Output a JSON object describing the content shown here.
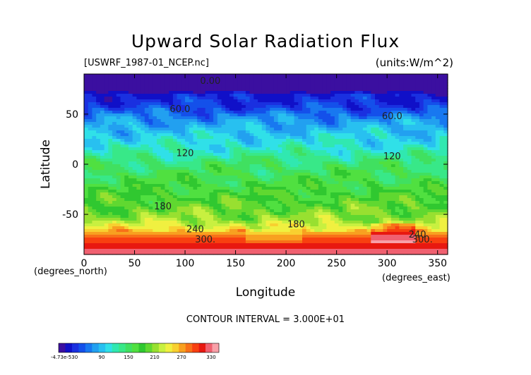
{
  "chart_data": {
    "type": "heatmap",
    "title": "Upward Solar Radiation Flux",
    "file_label": "[USWRF_1987-01_NCEP.nc]",
    "units_label": "(units:W/m^2)",
    "xlabel": "Longitude",
    "ylabel": "Latitude",
    "x_unit_label": "(degrees_east)",
    "y_unit_label": "(degrees_north)",
    "xlim": [
      0,
      360
    ],
    "ylim": [
      -90,
      90
    ],
    "x_ticks": [
      0,
      50,
      100,
      150,
      200,
      250,
      300,
      350
    ],
    "y_ticks": [
      -50,
      0,
      50
    ],
    "contour_interval": "CONTOUR INTERVAL = 3.000E+01",
    "contour_labels": [
      {
        "text": "0.00",
        "lon": 125,
        "lat": 80
      },
      {
        "text": "60.0",
        "lon": 95,
        "lat": 52
      },
      {
        "text": "60.0",
        "lon": 305,
        "lat": 45
      },
      {
        "text": "120",
        "lon": 100,
        "lat": 8
      },
      {
        "text": "120",
        "lon": 305,
        "lat": 5
      },
      {
        "text": "180",
        "lon": 78,
        "lat": -45
      },
      {
        "text": "180",
        "lon": 210,
        "lat": -63
      },
      {
        "text": "240",
        "lon": 110,
        "lat": -68
      },
      {
        "text": "240",
        "lon": 330,
        "lat": -73
      },
      {
        "text": "300.",
        "lon": 120,
        "lat": -78
      },
      {
        "text": "300.",
        "lon": 335,
        "lat": -78
      }
    ],
    "lat_profile": [
      {
        "lat": 90,
        "value": 0
      },
      {
        "lat": 72,
        "value": 0
      },
      {
        "lat": 70,
        "value": 20
      },
      {
        "lat": 58,
        "value": 35
      },
      {
        "lat": 45,
        "value": 70
      },
      {
        "lat": 30,
        "value": 95
      },
      {
        "lat": 15,
        "value": 115
      },
      {
        "lat": 0,
        "value": 145
      },
      {
        "lat": -20,
        "value": 165
      },
      {
        "lat": -40,
        "value": 190
      },
      {
        "lat": -55,
        "value": 210
      },
      {
        "lat": -62,
        "value": 235
      },
      {
        "lat": -66,
        "value": 255
      },
      {
        "lat": -70,
        "value": 285
      },
      {
        "lat": -78,
        "value": 305
      },
      {
        "lat": -90,
        "value": 335
      }
    ],
    "colorbar": {
      "tick_labels": [
        "-4.73e-530",
        "90",
        "150",
        "210",
        "270",
        "330"
      ],
      "colors": [
        "#3b0fa0",
        "#1010c8",
        "#1a30e0",
        "#1450ea",
        "#1878f0",
        "#22a0f0",
        "#28c0f0",
        "#30e0e8",
        "#30e8b0",
        "#38e888",
        "#40e060",
        "#50e040",
        "#30c830",
        "#60d830",
        "#98e030",
        "#c8f040",
        "#f0f040",
        "#f8d030",
        "#f8a020",
        "#f87018",
        "#f84010",
        "#e81810",
        "#f06070",
        "#f8a0a8"
      ]
    }
  }
}
